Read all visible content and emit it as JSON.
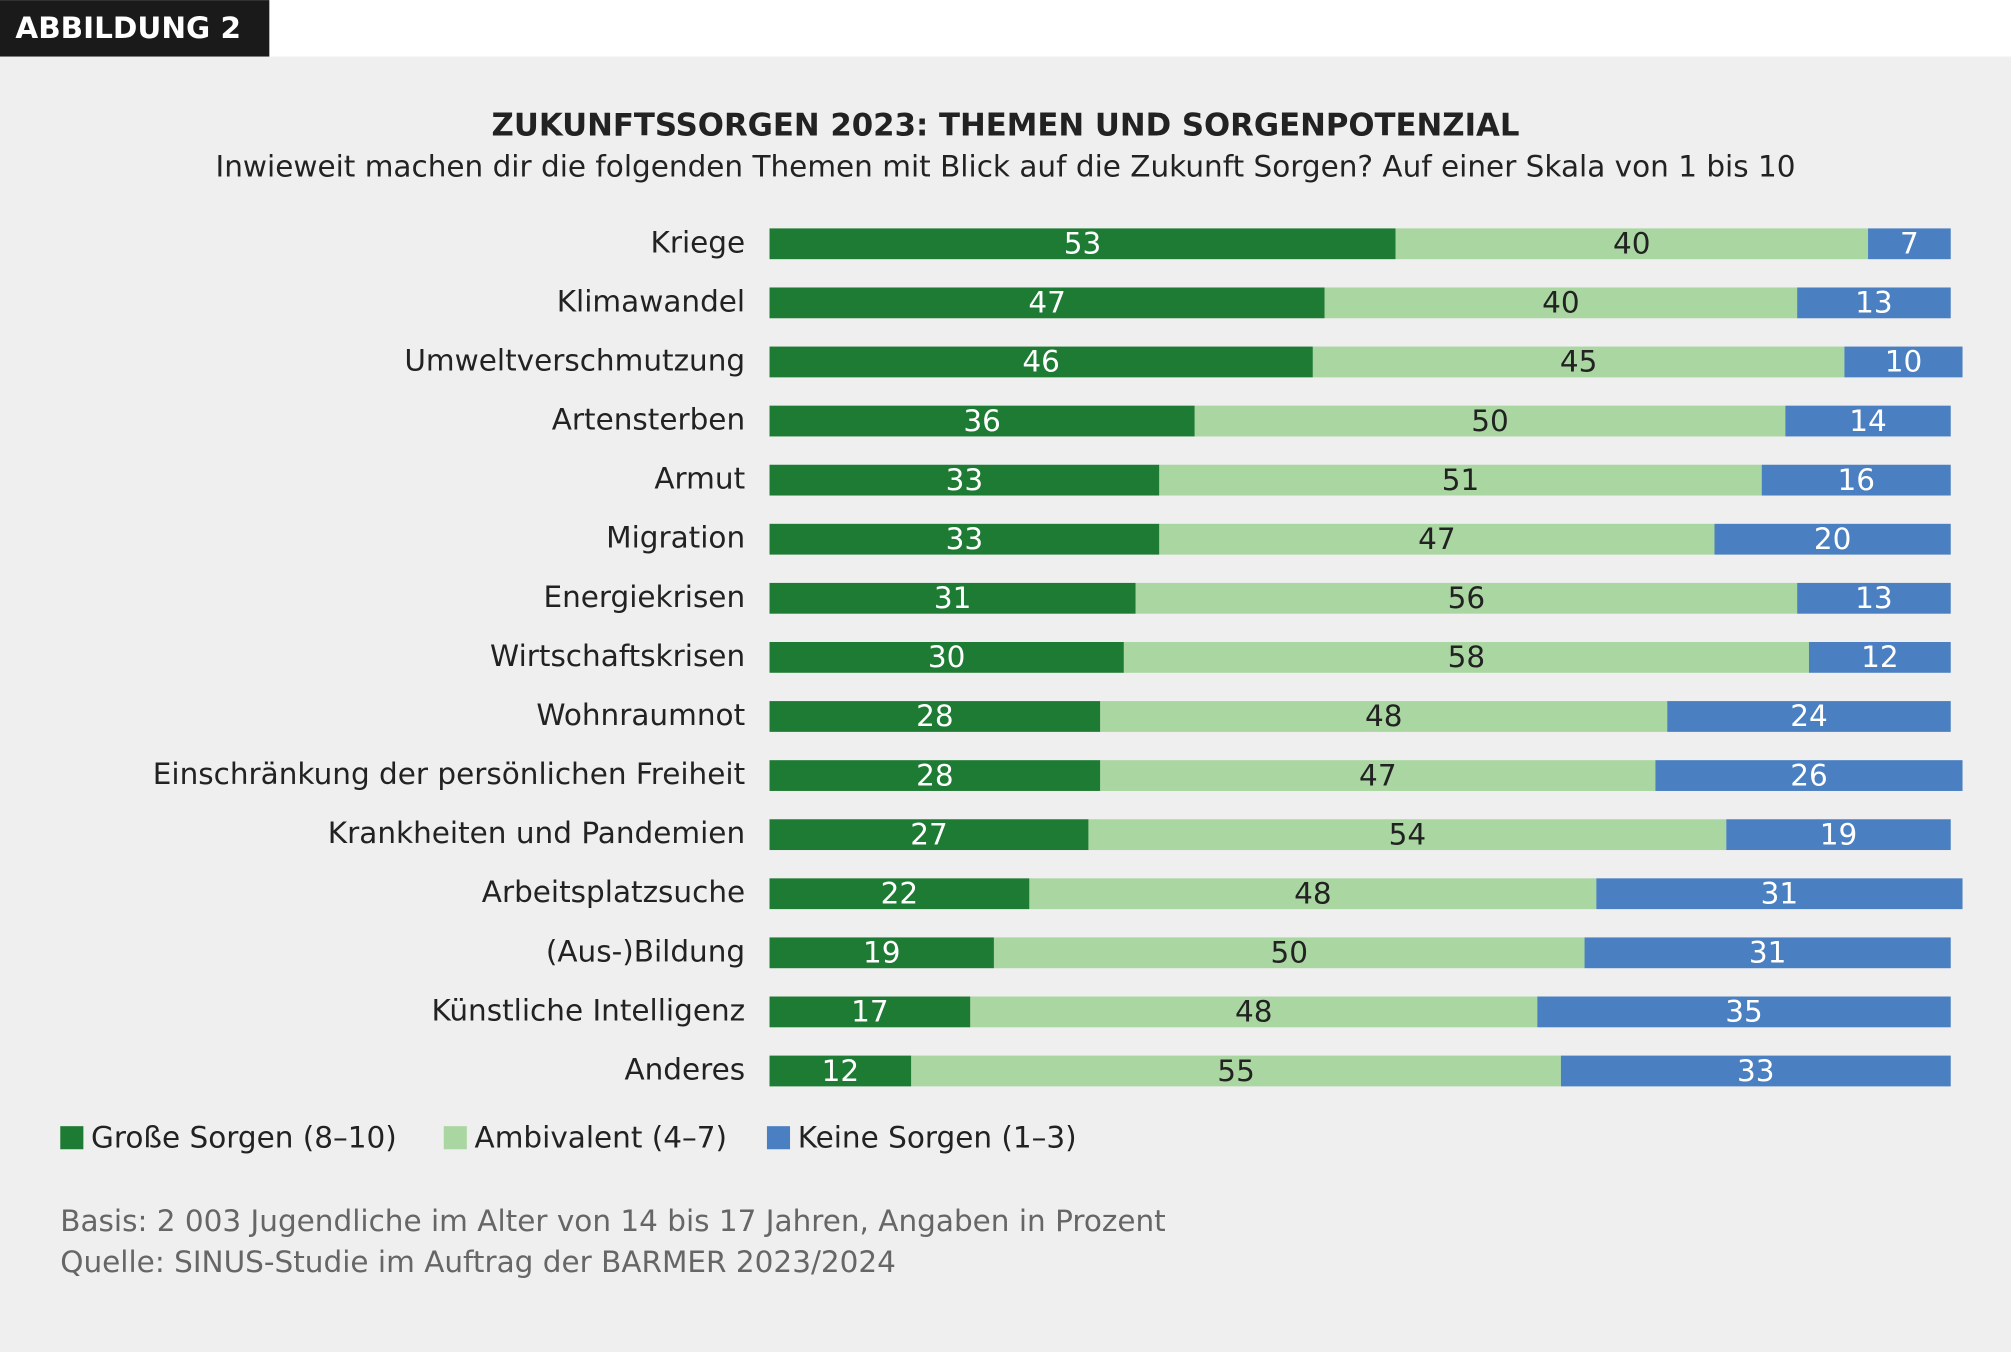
{
  "chart_data": {
    "type": "stacked_bar_horizontal",
    "figure_label": "ABBILDUNG 2",
    "title": "ZUKUNFTSSORGEN 2023: THEMEN UND SORGENPOTENZIAL",
    "subtitle": "Inwieweit machen dir die folgenden Themen mit Blick auf die Zukunft Sorgen? Auf einer Skala von 1 bis 10",
    "categories": [
      "Kriege",
      "Klimawandel",
      "Umweltverschmutzung",
      "Artensterben",
      "Armut",
      "Migration",
      "Energiekrisen",
      "Wirtschaftskrisen",
      "Wohnraumnot",
      "Einschränkung der persönlichen Freiheit",
      "Krankheiten und Pandemien",
      "Arbeitsplatzsuche",
      "(Aus-)Bildung",
      "Künstliche Intelligenz",
      "Anderes"
    ],
    "series": [
      {
        "name": "Große Sorgen (8–10)",
        "color": "#1e7b34",
        "values": [
          53,
          47,
          46,
          36,
          33,
          33,
          31,
          30,
          28,
          28,
          27,
          22,
          19,
          17,
          12
        ]
      },
      {
        "name": "Ambivalent (4–7)",
        "color": "#a9d6a1",
        "values": [
          40,
          40,
          45,
          50,
          51,
          47,
          56,
          58,
          48,
          47,
          54,
          48,
          50,
          48,
          55
        ]
      },
      {
        "name": "Keine Sorgen (1–3)",
        "color": "#4a7fc1",
        "values": [
          7,
          13,
          10,
          14,
          16,
          20,
          13,
          12,
          24,
          26,
          19,
          31,
          31,
          35,
          33
        ]
      }
    ],
    "note": "Basis: 2 003 Jugendliche im Alter von 14 bis 17 Jahren, Angaben in Prozent",
    "source": "Quelle: SINUS-Studie im Auftrag der BARMER 2023/2024"
  }
}
